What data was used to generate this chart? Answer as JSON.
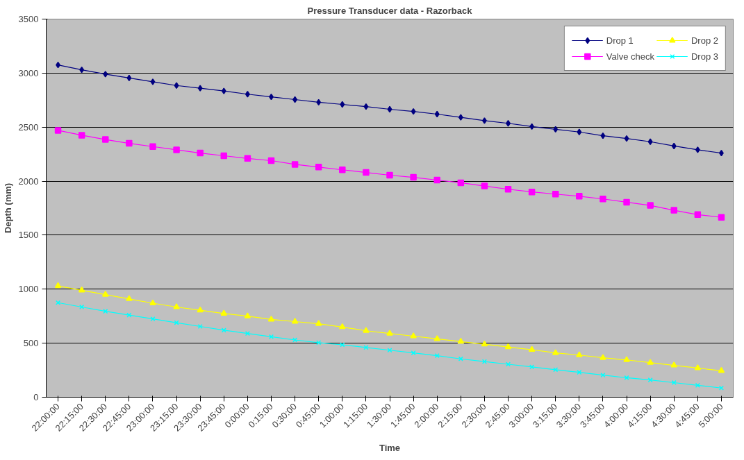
{
  "chart_data": {
    "type": "line",
    "title": "Pressure Transducer data - Razorback",
    "xlabel": "Time",
    "ylabel": "Depth (mm)",
    "categories": [
      "22:00:00",
      "22:15:00",
      "22:30:00",
      "22:45:00",
      "23:00:00",
      "23:15:00",
      "23:30:00",
      "23:45:00",
      "0:00:00",
      "0:15:00",
      "0:30:00",
      "0:45:00",
      "1:00:00",
      "1:15:00",
      "1:30:00",
      "1:45:00",
      "2:00:00",
      "2:15:00",
      "2:30:00",
      "2:45:00",
      "3:00:00",
      "3:15:00",
      "3:30:00",
      "3:45:00",
      "4:00:00",
      "4:15:00",
      "4:30:00",
      "4:45:00",
      "5:00:00"
    ],
    "series": [
      {
        "name": "Drop 1",
        "color": "#000080",
        "marker": "diamond",
        "values": [
          3075,
          3030,
          2990,
          2955,
          2920,
          2885,
          2860,
          2835,
          2805,
          2780,
          2755,
          2730,
          2710,
          2690,
          2665,
          2645,
          2620,
          2590,
          2560,
          2535,
          2505,
          2480,
          2455,
          2420,
          2395,
          2365,
          2325,
          2290,
          2260
        ]
      },
      {
        "name": "Valve check",
        "color": "#ff00ff",
        "marker": "square",
        "values": [
          2470,
          2425,
          2385,
          2350,
          2320,
          2290,
          2260,
          2235,
          2210,
          2190,
          2155,
          2130,
          2105,
          2080,
          2055,
          2035,
          2010,
          1985,
          1955,
          1925,
          1900,
          1880,
          1860,
          1835,
          1805,
          1775,
          1730,
          1690,
          1665
        ]
      },
      {
        "name": "Drop 2",
        "color": "#ffff00",
        "marker": "triangle",
        "values": [
          1030,
          990,
          950,
          910,
          870,
          835,
          805,
          775,
          750,
          720,
          700,
          680,
          650,
          615,
          590,
          565,
          540,
          515,
          490,
          465,
          440,
          410,
          390,
          365,
          345,
          320,
          295,
          270,
          245
        ]
      },
      {
        "name": "Drop 3",
        "color": "#00ffff",
        "marker": "cross",
        "values": [
          875,
          835,
          795,
          760,
          725,
          690,
          655,
          620,
          590,
          560,
          530,
          505,
          485,
          460,
          435,
          410,
          385,
          355,
          330,
          305,
          280,
          255,
          230,
          205,
          180,
          160,
          135,
          110,
          85
        ]
      }
    ],
    "ylim": [
      0,
      3500
    ],
    "yticks": [
      0,
      500,
      1000,
      1500,
      2000,
      2500,
      3000,
      3500
    ],
    "grid": "y",
    "legend": "top right",
    "line_style": "solid"
  }
}
